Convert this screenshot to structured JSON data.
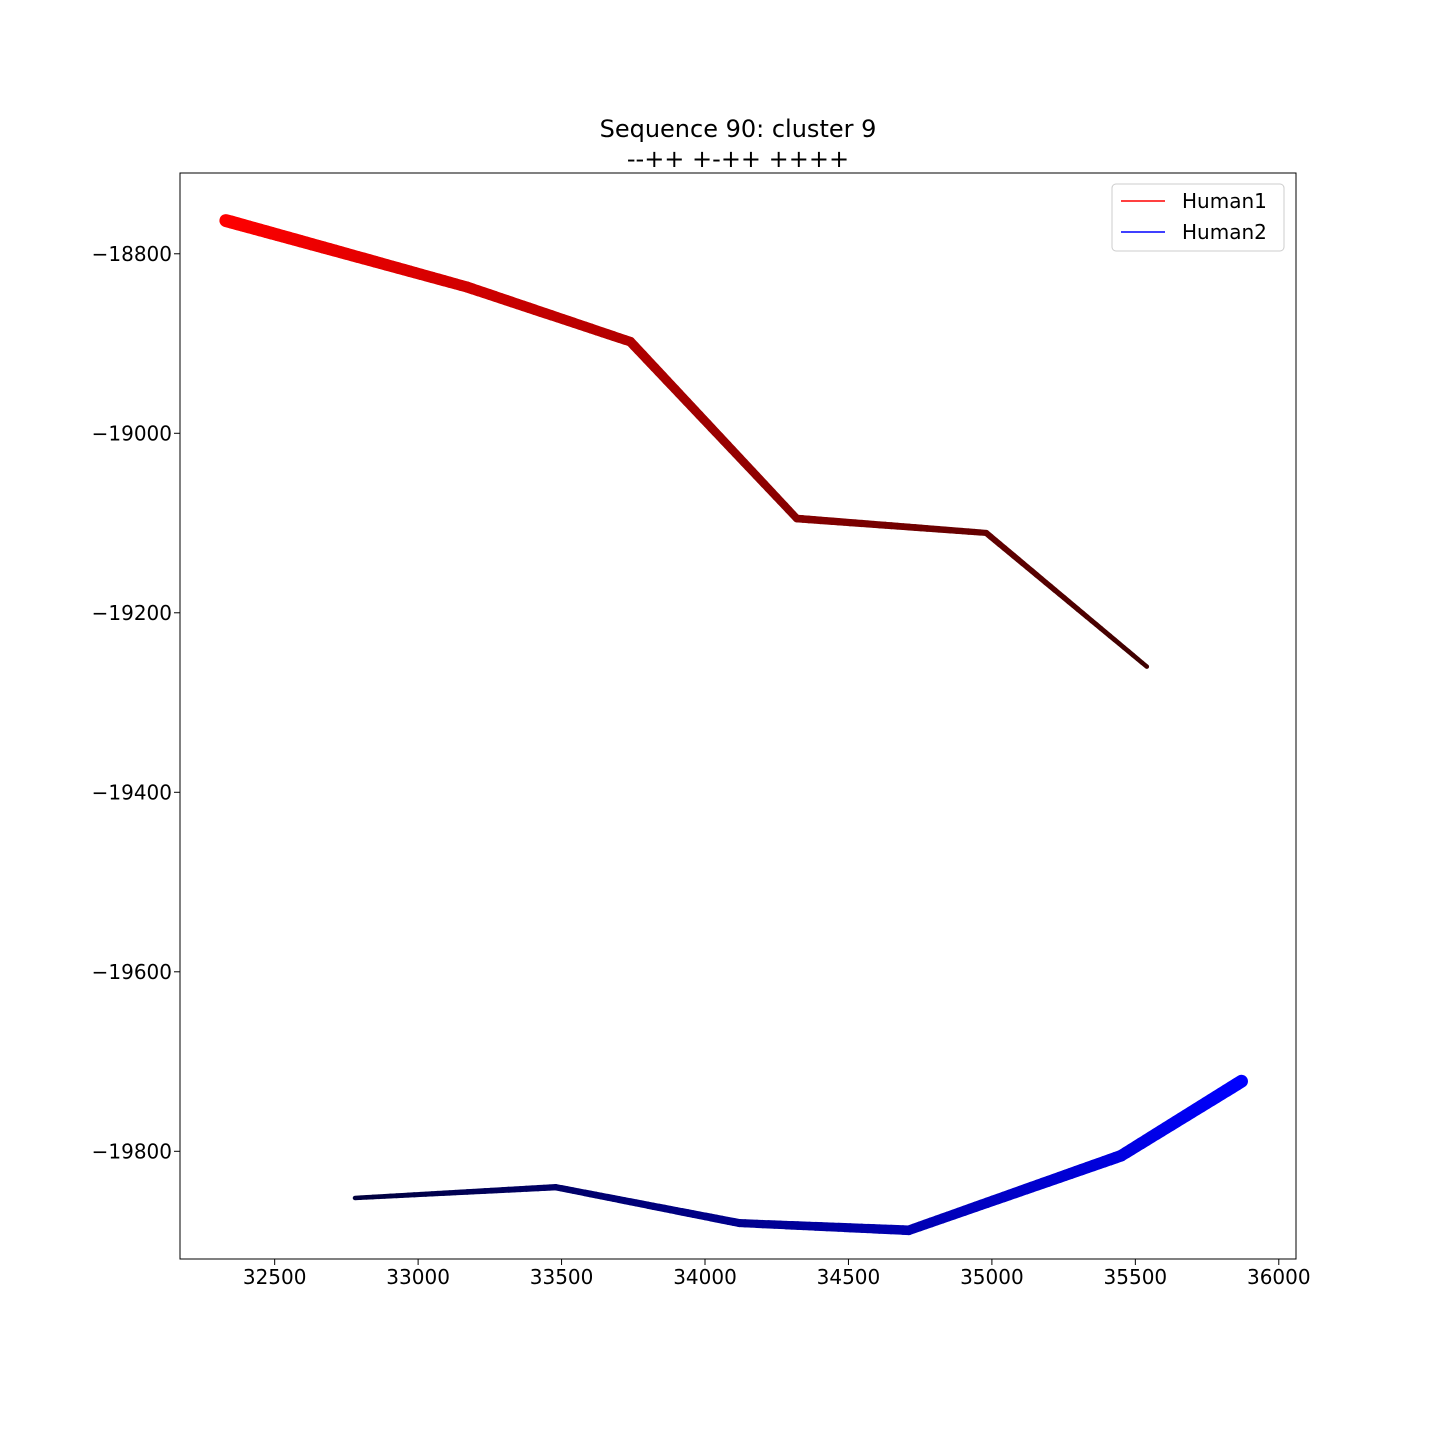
{
  "chart_data": {
    "type": "line",
    "title": "Sequence 90: cluster 9",
    "subtitle": "--++ +-++ ++++",
    "xlabel": "",
    "ylabel": "",
    "xlim": [
      32170,
      36060
    ],
    "ylim": [
      -19920,
      -18710
    ],
    "xticks": [
      32500,
      33000,
      33500,
      34000,
      34500,
      35000,
      35500,
      36000
    ],
    "xtick_labels": [
      "32500",
      "33000",
      "33500",
      "34000",
      "34500",
      "35000",
      "35500",
      "36000"
    ],
    "yticks": [
      -18800,
      -19000,
      -19200,
      -19400,
      -19600,
      -19800
    ],
    "ytick_labels": [
      "−18800",
      "−19000",
      "−19200",
      "−19400",
      "−19600",
      "−19800"
    ],
    "grid": false,
    "legend_position": "top-right",
    "series": [
      {
        "name": "Human1",
        "color": "#ff0000",
        "end_color": "#3d0000",
        "x": [
          32330,
          33170,
          33740,
          34320,
          34980,
          35540
        ],
        "y": [
          -18763,
          -18837,
          -18898,
          -19095,
          -19111,
          -19260
        ]
      },
      {
        "name": "Human2",
        "color": "#0000ff",
        "end_color": "#00003d",
        "x": [
          35870,
          35450,
          34710,
          34120,
          33480,
          32780
        ],
        "y": [
          -19722,
          -19805,
          -19888,
          -19880,
          -19840,
          -19852
        ]
      }
    ]
  }
}
